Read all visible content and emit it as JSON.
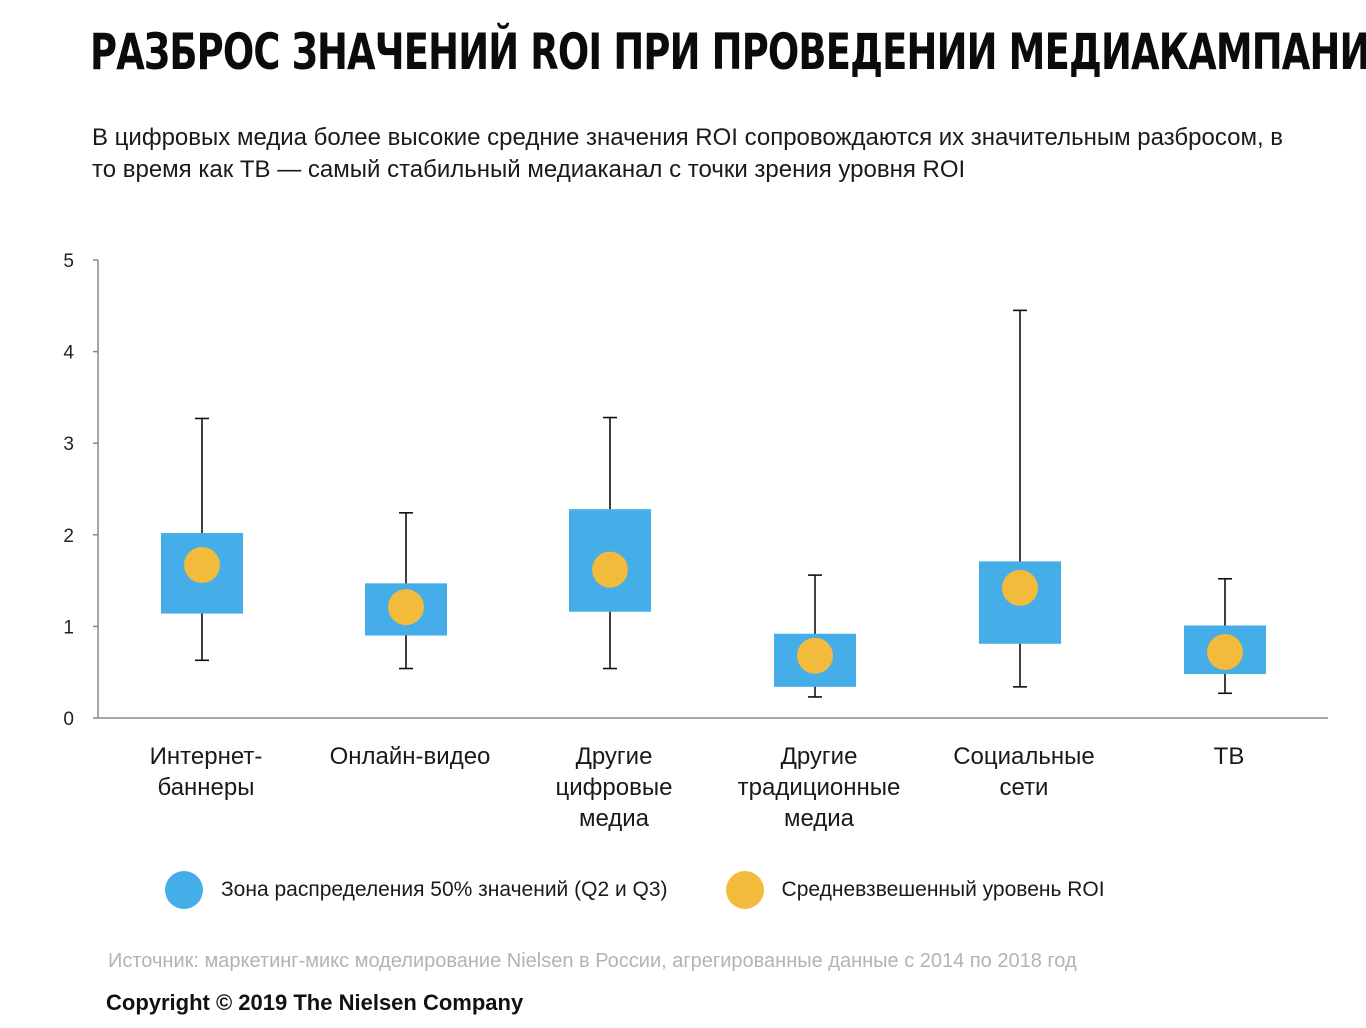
{
  "title": "РАЗБРОС ЗНАЧЕНИЙ ROI ПРИ ПРОВЕДЕНИИ МЕДИАКАМПАНИЙ",
  "subtitle": "В цифровых медиа более высокие средние значения ROI сопровождаются их значительным разбросом, в то время как ТВ — самый стабильный медиаканал с точки зрения уровня ROI",
  "chart_data": {
    "type": "boxplot",
    "ylim": [
      0,
      5
    ],
    "yticks": [
      0,
      1,
      2,
      3,
      4,
      5
    ],
    "categories": [
      {
        "label_lines": [
          "Интернет-",
          "баннеры"
        ],
        "min": 0.63,
        "q1": 1.14,
        "q3": 2.02,
        "max": 3.27,
        "mean": 1.67
      },
      {
        "label_lines": [
          "Онлайн-видео"
        ],
        "min": 0.54,
        "q1": 0.9,
        "q3": 1.47,
        "max": 2.24,
        "mean": 1.21
      },
      {
        "label_lines": [
          "Другие",
          "цифровые",
          "медиа"
        ],
        "min": 0.54,
        "q1": 1.16,
        "q3": 2.28,
        "max": 3.28,
        "mean": 1.62
      },
      {
        "label_lines": [
          "Другие",
          "традиционные",
          "медиа"
        ],
        "min": 0.23,
        "q1": 0.34,
        "q3": 0.92,
        "max": 1.56,
        "mean": 0.68
      },
      {
        "label_lines": [
          "Социальные",
          "сети"
        ],
        "min": 0.34,
        "q1": 0.81,
        "q3": 1.71,
        "max": 4.45,
        "mean": 1.42
      },
      {
        "label_lines": [
          "ТВ"
        ],
        "min": 0.27,
        "q1": 0.48,
        "q3": 1.01,
        "max": 1.52,
        "mean": 0.72
      }
    ],
    "colors": {
      "box": "#45ade8",
      "mean": "#f2bb3c",
      "axis": "#888888",
      "whisker": "#111111"
    }
  },
  "legend": {
    "items": [
      {
        "label": "Зона распределения 50% значений (Q2 и Q3)",
        "color": "#45ade8"
      },
      {
        "label": "Средневзвешенный уровень ROI",
        "color": "#f2bb3c"
      }
    ]
  },
  "source": "Источник: маркетинг-микс моделирование Nielsen в России, агрегированные данные с 2014 по 2018 год",
  "copyright": "Copyright © 2019 The Nielsen Company"
}
